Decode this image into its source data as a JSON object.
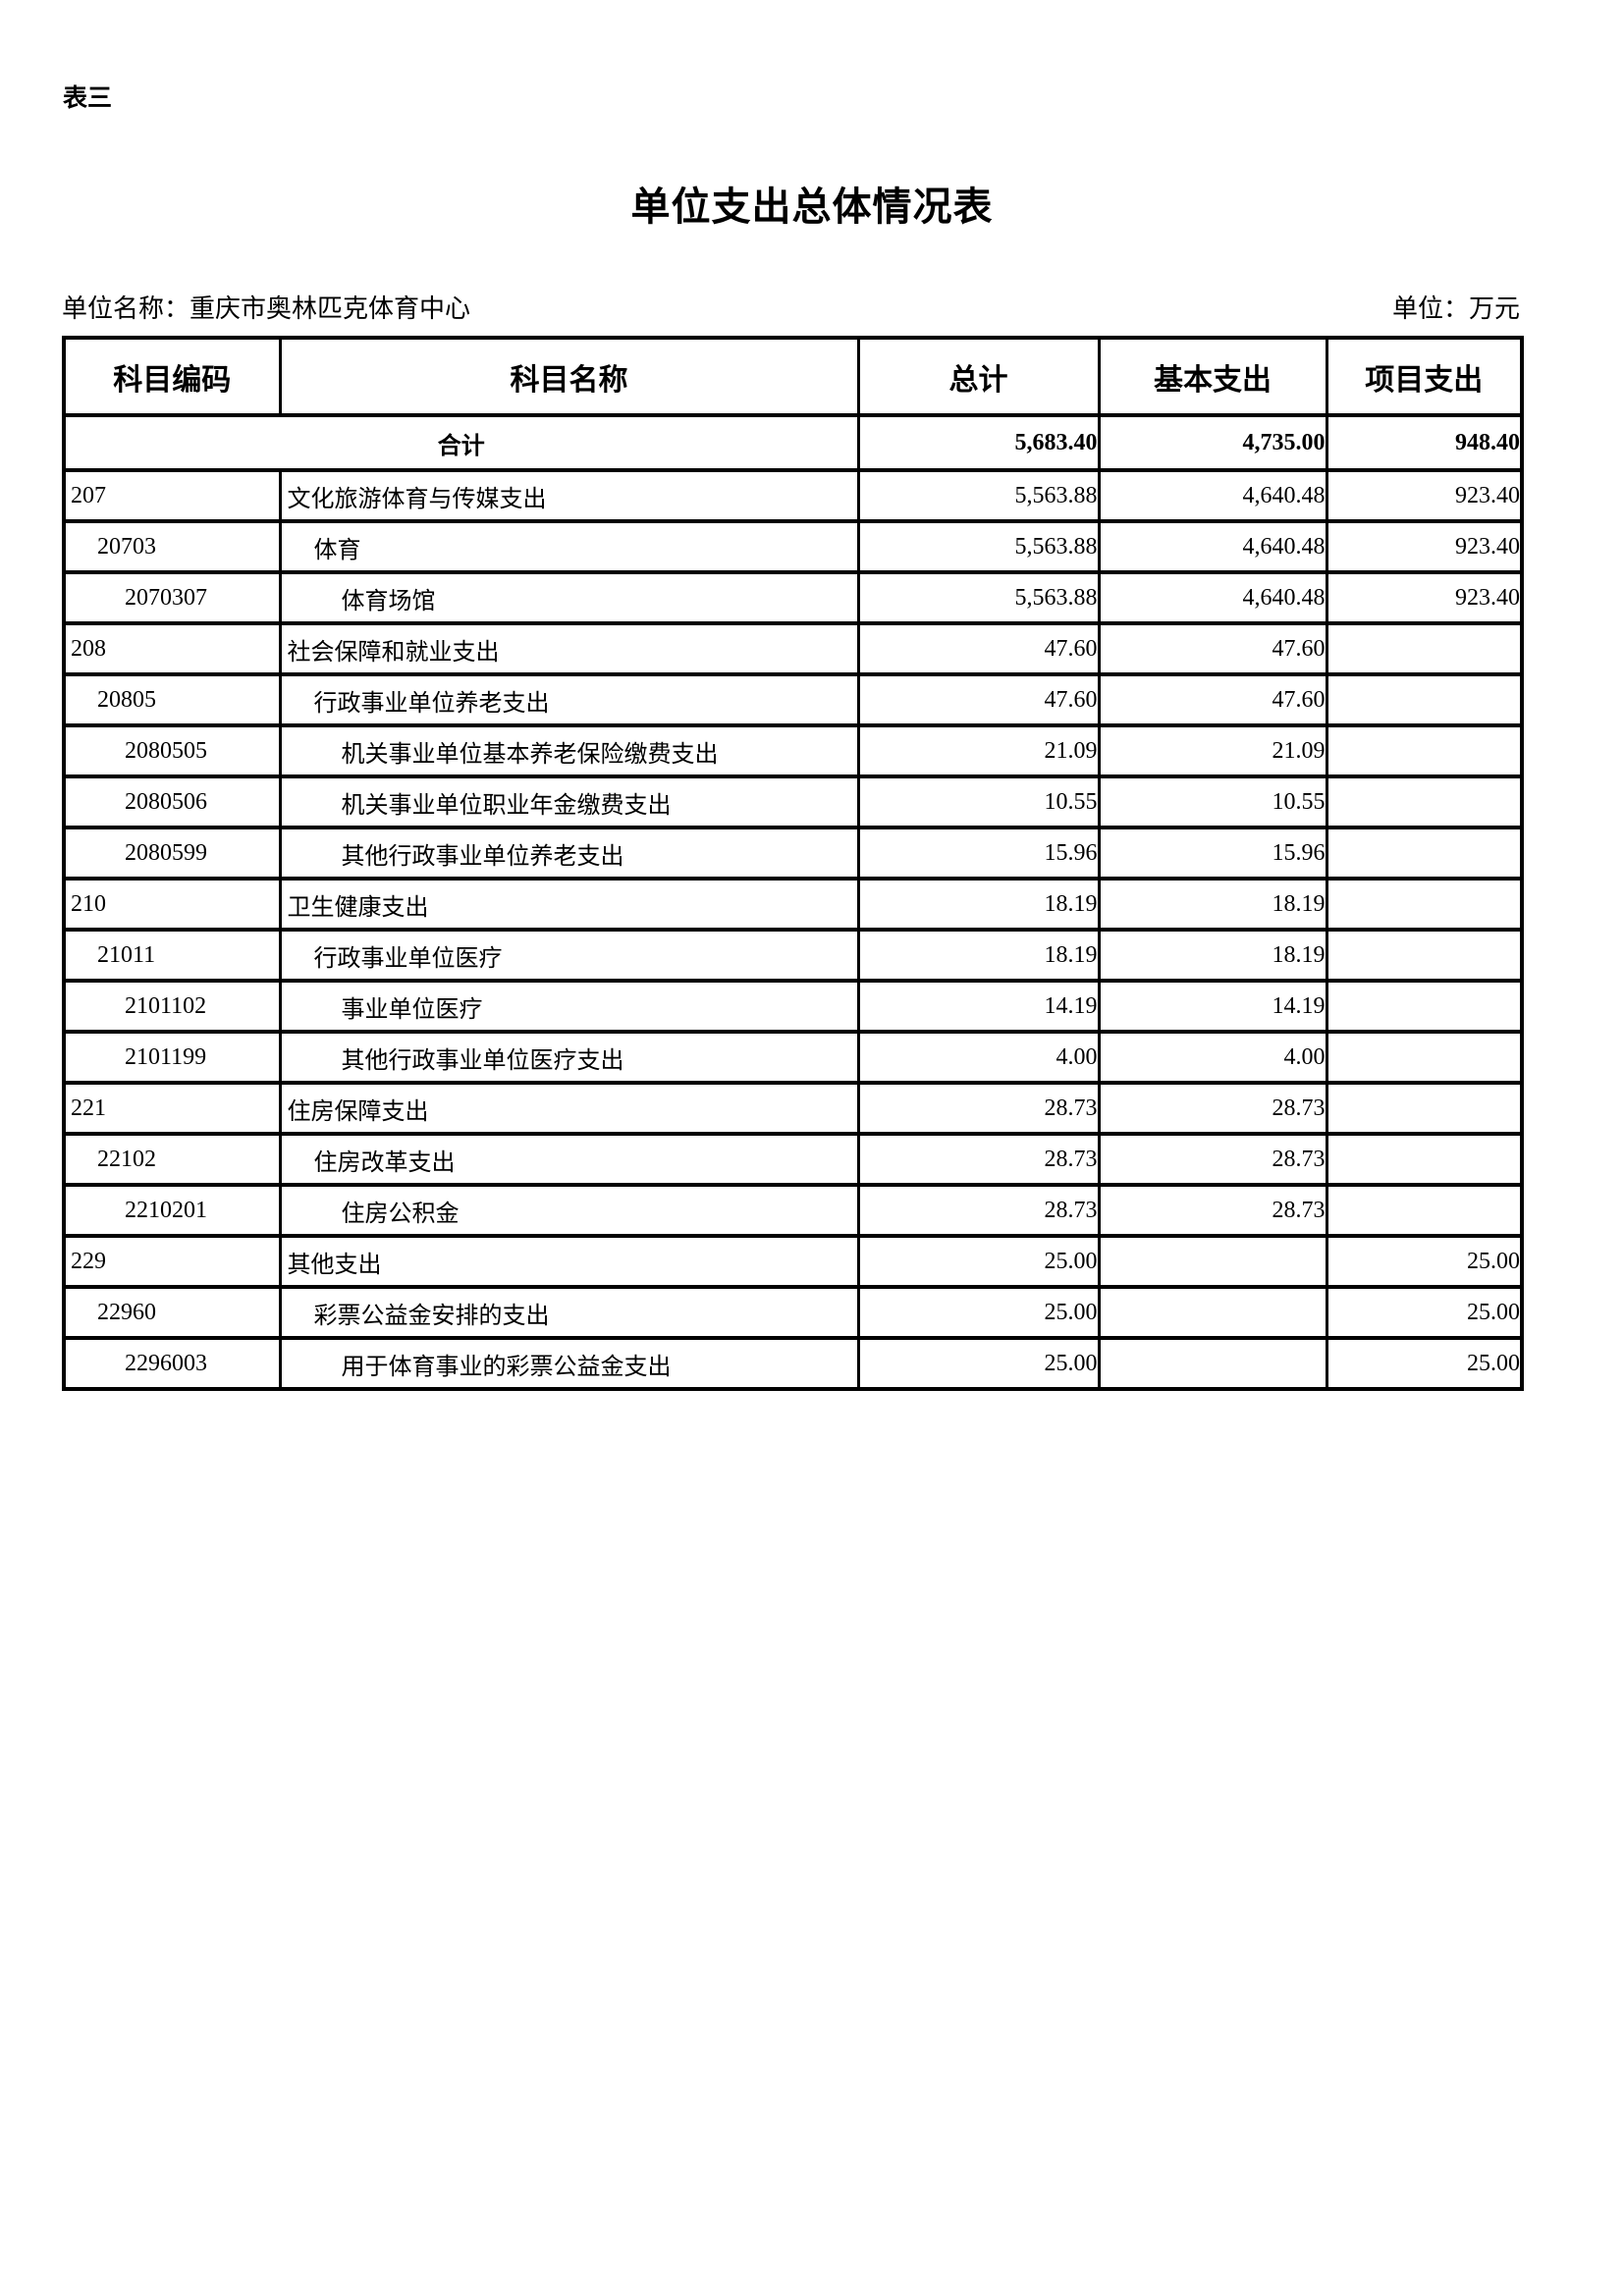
{
  "page": {
    "corner_label": "表三",
    "title": "单位支出总体情况表",
    "unit_name": "单位名称：重庆市奥林匹克体育中心",
    "unit_measure": "单位：万元"
  },
  "table": {
    "headers": [
      "科目编码",
      "科目名称",
      "总计",
      "基本支出",
      "项目支出"
    ],
    "total_row": {
      "label": "合计",
      "total": "5,683.40",
      "basic": "4,735.00",
      "project": "948.40"
    },
    "rows": [
      {
        "code": "207",
        "name": "文化旅游体育与传媒支出",
        "level": 1,
        "total": "5,563.88",
        "basic": "4,640.48",
        "project": "923.40"
      },
      {
        "code": "20703",
        "name": "体育",
        "level": 2,
        "total": "5,563.88",
        "basic": "4,640.48",
        "project": "923.40"
      },
      {
        "code": "2070307",
        "name": "体育场馆",
        "level": 3,
        "total": "5,563.88",
        "basic": "4,640.48",
        "project": "923.40"
      },
      {
        "code": "208",
        "name": "社会保障和就业支出",
        "level": 1,
        "total": "47.60",
        "basic": "47.60",
        "project": ""
      },
      {
        "code": "20805",
        "name": "行政事业单位养老支出",
        "level": 2,
        "total": "47.60",
        "basic": "47.60",
        "project": ""
      },
      {
        "code": "2080505",
        "name": "机关事业单位基本养老保险缴费支出",
        "level": 3,
        "total": "21.09",
        "basic": "21.09",
        "project": ""
      },
      {
        "code": "2080506",
        "name": "机关事业单位职业年金缴费支出",
        "level": 3,
        "total": "10.55",
        "basic": "10.55",
        "project": ""
      },
      {
        "code": "2080599",
        "name": "其他行政事业单位养老支出",
        "level": 3,
        "total": "15.96",
        "basic": "15.96",
        "project": ""
      },
      {
        "code": "210",
        "name": "卫生健康支出",
        "level": 1,
        "total": "18.19",
        "basic": "18.19",
        "project": ""
      },
      {
        "code": "21011",
        "name": "行政事业单位医疗",
        "level": 2,
        "total": "18.19",
        "basic": "18.19",
        "project": ""
      },
      {
        "code": "2101102",
        "name": "事业单位医疗",
        "level": 3,
        "total": "14.19",
        "basic": "14.19",
        "project": ""
      },
      {
        "code": "2101199",
        "name": "其他行政事业单位医疗支出",
        "level": 3,
        "total": "4.00",
        "basic": "4.00",
        "project": ""
      },
      {
        "code": "221",
        "name": "住房保障支出",
        "level": 1,
        "total": "28.73",
        "basic": "28.73",
        "project": ""
      },
      {
        "code": "22102",
        "name": "住房改革支出",
        "level": 2,
        "total": "28.73",
        "basic": "28.73",
        "project": ""
      },
      {
        "code": "2210201",
        "name": "住房公积金",
        "level": 3,
        "total": "28.73",
        "basic": "28.73",
        "project": ""
      },
      {
        "code": "229",
        "name": "其他支出",
        "level": 1,
        "total": "25.00",
        "basic": "",
        "project": "25.00"
      },
      {
        "code": "22960",
        "name": "彩票公益金安排的支出",
        "level": 2,
        "total": "25.00",
        "basic": "",
        "project": "25.00"
      },
      {
        "code": "2296003",
        "name": "用于体育事业的彩票公益金支出",
        "level": 3,
        "total": "25.00",
        "basic": "",
        "project": "25.00"
      }
    ]
  }
}
